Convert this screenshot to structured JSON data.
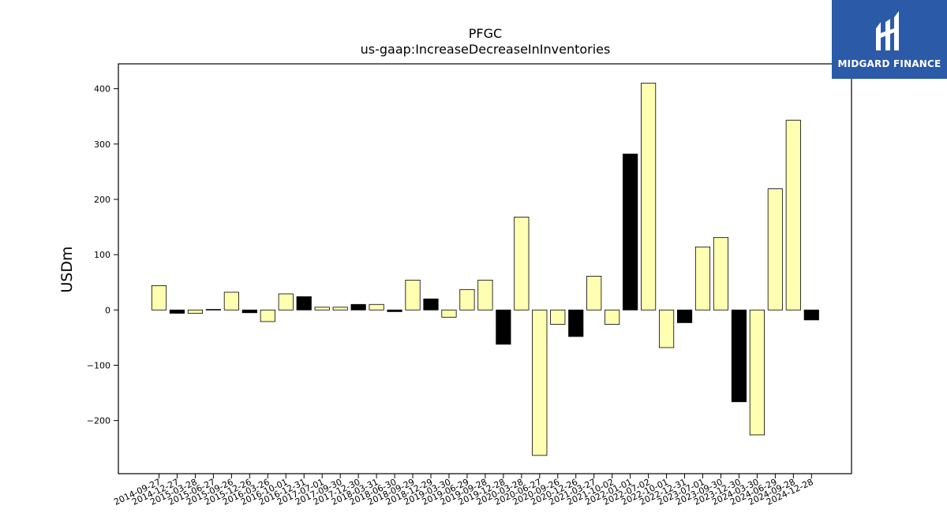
{
  "brand": {
    "name": "MIDGARD FINANCE",
    "logo_color": "#2b5aa8"
  },
  "chart_data": {
    "type": "bar",
    "title": "PFGC",
    "subtitle": "us-gaap:IncreaseDecreaseInInventories",
    "xlabel": "",
    "ylabel": "USDm",
    "ylim": [
      -296,
      445
    ],
    "yticks": [
      -200,
      -100,
      0,
      100,
      200,
      300,
      400
    ],
    "grid": false,
    "categories": [
      "2014-09-27",
      "2014-12-27",
      "2015-03-28",
      "2015-06-27",
      "2015-09-26",
      "2015-12-26",
      "2016-03-26",
      "2016-10-01",
      "2016-12-31",
      "2017-07-01",
      "2017-09-30",
      "2017-12-30",
      "2018-03-31",
      "2018-06-30",
      "2018-09-29",
      "2018-12-29",
      "2019-03-30",
      "2019-06-29",
      "2019-09-28",
      "2019-12-28",
      "2020-03-28",
      "2020-06-27",
      "2020-09-26",
      "2020-12-26",
      "2021-03-27",
      "2021-10-02",
      "2022-01-01",
      "2022-07-02",
      "2022-10-01",
      "2022-12-31",
      "2023-07-01",
      "2023-09-30",
      "2023-12-30",
      "2024-03-30",
      "2024-06-29",
      "2024-09-28",
      "2024-12-28"
    ],
    "values": [
      44,
      -6,
      -6,
      1,
      32,
      -5,
      -21,
      29,
      24,
      5,
      5,
      10,
      10,
      -3,
      54,
      20,
      -13,
      37,
      54,
      -62,
      168,
      -263,
      -26,
      -48,
      61,
      -26,
      282,
      410,
      -68,
      -23,
      114,
      131,
      -166,
      -226,
      219,
      343,
      -18
    ],
    "bar_colors": [
      "#ffffb2",
      "#000000",
      "#ffffb2",
      "#000000",
      "#ffffb2",
      "#000000",
      "#ffffb2",
      "#ffffb2",
      "#000000",
      "#ffffb2",
      "#ffffb2",
      "#000000",
      "#ffffb2",
      "#000000",
      "#ffffb2",
      "#000000",
      "#ffffb2",
      "#ffffb2",
      "#ffffb2",
      "#000000",
      "#ffffb2",
      "#ffffb2",
      "#ffffb2",
      "#000000",
      "#ffffb2",
      "#ffffb2",
      "#000000",
      "#ffffb2",
      "#ffffb2",
      "#000000",
      "#ffffb2",
      "#ffffb2",
      "#000000",
      "#ffffb2",
      "#ffffb2",
      "#ffffb2",
      "#000000"
    ]
  }
}
